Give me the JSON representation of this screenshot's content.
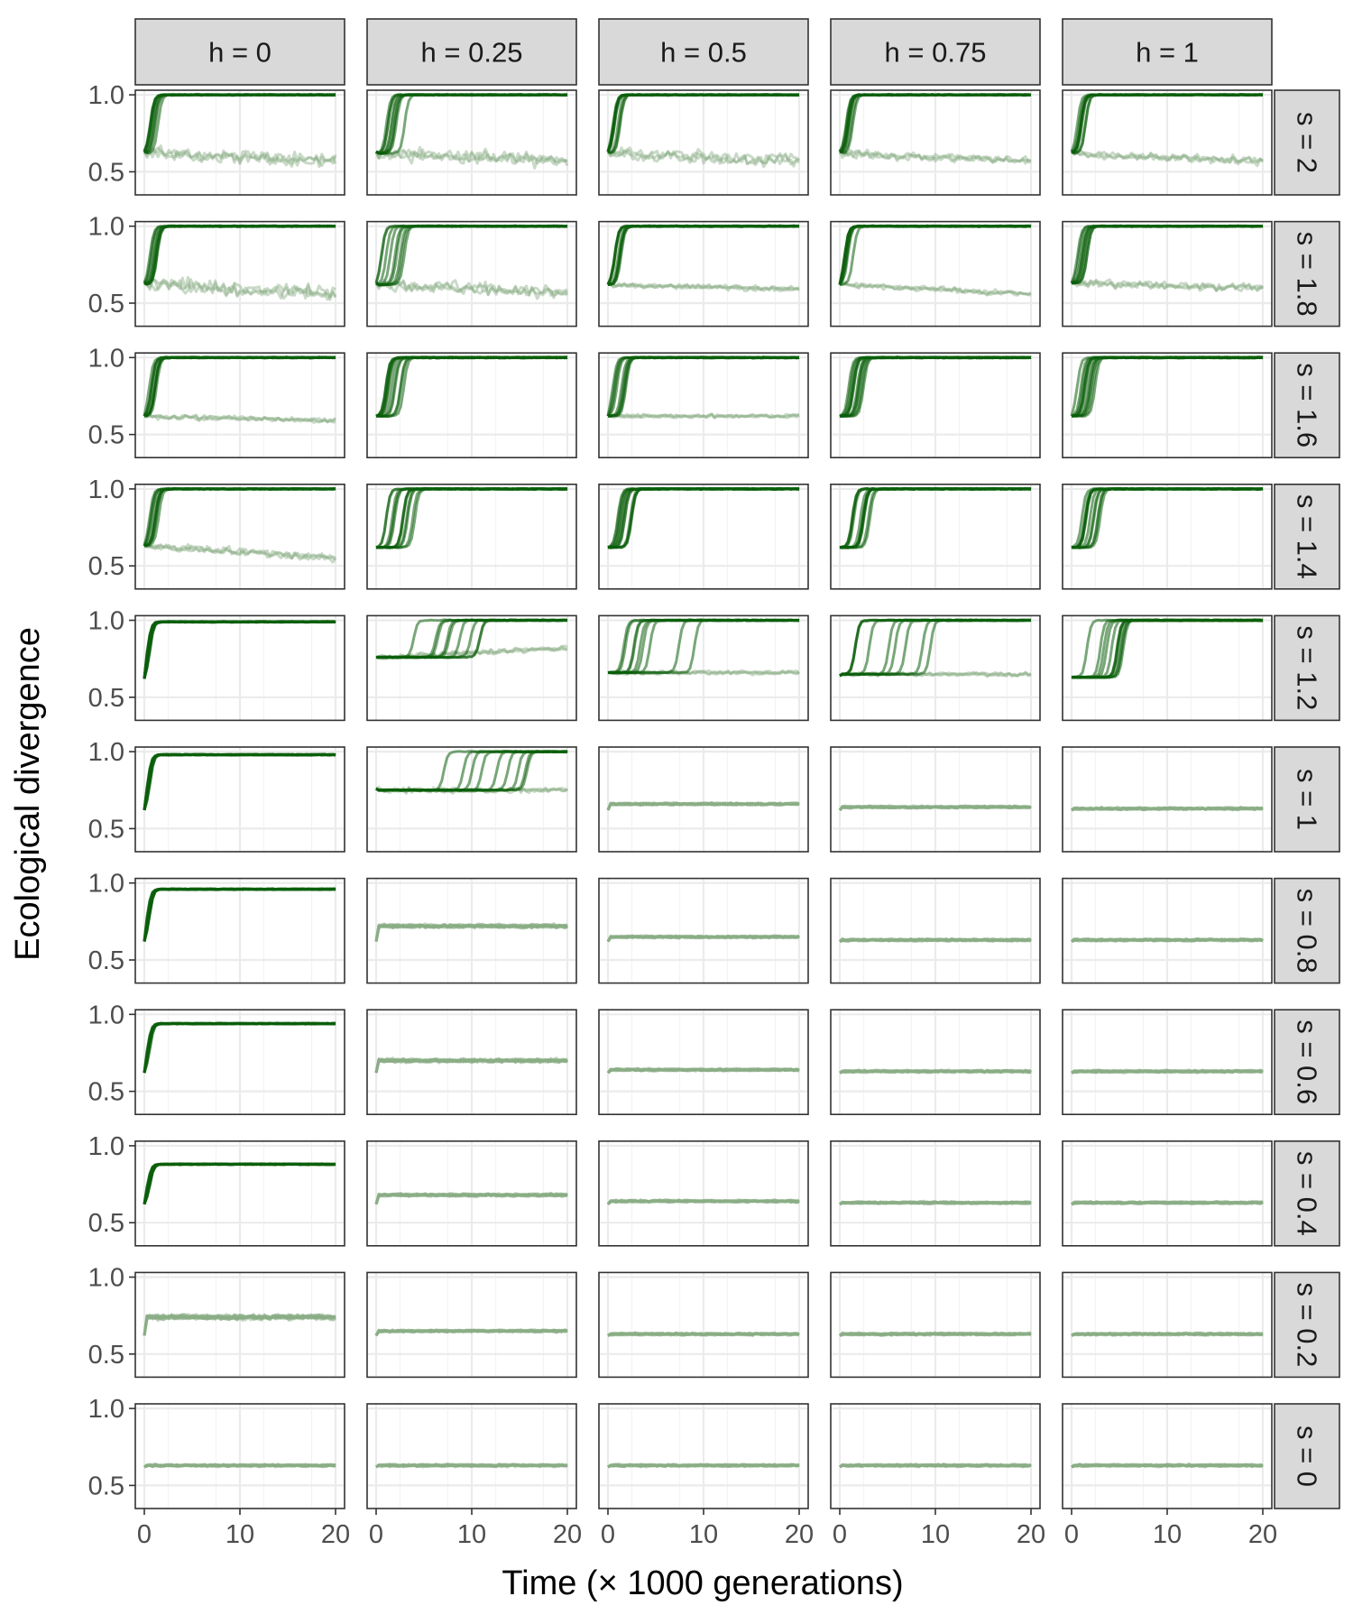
{
  "chart_data": {
    "type": "line",
    "layout": "facet-grid",
    "xlabel": "Time (× 1000 generations)",
    "ylabel": "Ecological divergence",
    "xlim": [
      0,
      20
    ],
    "ylim": [
      0.5,
      1.0
    ],
    "xticks": [
      0,
      10,
      20
    ],
    "yticks": [
      0.5,
      1.0
    ],
    "xtick_labels": [
      "0",
      "10",
      "20"
    ],
    "ytick_labels": [
      "0.5",
      "1.0"
    ],
    "grid": true,
    "col_facet_labels": [
      "h = 0",
      "h = 0.25",
      "h = 0.5",
      "h = 0.75",
      "h = 1"
    ],
    "row_facet_labels": [
      "s = 2",
      "s = 1.8",
      "s = 1.6",
      "s = 1.4",
      "s = 1.2",
      "s = 1",
      "s = 0.8",
      "s = 0.6",
      "s = 0.4",
      "s = 0.2",
      "s = 0"
    ],
    "colors": {
      "diverged": "#0b5e0b",
      "intermediate": "#3f8a3f",
      "not_diverged": "#8aae86",
      "strip_fill": "#d9d9d9",
      "grid": "#ebebeb",
      "panel_border": "#333333"
    },
    "panels": [
      [
        {
          "start": 0.63,
          "diverge": 1.0,
          "t_min": 0.5,
          "t_max": 1.5,
          "plateau": 0.62,
          "drift": -0.05,
          "noise": 0.05
        },
        {
          "start": 0.63,
          "diverge": 1.0,
          "t_min": 0.5,
          "t_max": 1.5,
          "plateau": 0.62,
          "drift": -0.06,
          "noise": 0.06
        },
        {
          "start": 0.62,
          "diverge": 1.0,
          "t_min": 0.5,
          "t_max": 1.5,
          "plateau": 0.62,
          "drift": -0.03,
          "noise": 0.02
        },
        {
          "start": 0.63,
          "diverge": 1.0,
          "t_min": 0.5,
          "t_max": 1.5,
          "plateau": 0.63,
          "drift": -0.08,
          "noise": 0.03
        },
        {
          "start": 0.62,
          "diverge": 1.0,
          "t_min": 0.3,
          "t_max": 0.6,
          "final": 0.99
        },
        {
          "start": 0.62,
          "diverge": 1.0,
          "t_min": 0.3,
          "t_max": 0.6,
          "final": 0.98
        },
        {
          "start": 0.62,
          "diverge": 1.0,
          "t_min": 0.3,
          "t_max": 0.6,
          "final": 0.96
        },
        {
          "start": 0.62,
          "diverge": 1.0,
          "t_min": 0.3,
          "t_max": 0.6,
          "final": 0.94
        },
        {
          "start": 0.62,
          "diverge": 1.0,
          "t_min": 0.3,
          "t_max": 0.6,
          "final": 0.88
        },
        {
          "start": 0.62,
          "plateau": 0.74,
          "noise": 0.02
        },
        {
          "start": 0.62,
          "plateau": 0.63,
          "noise": 0.01
        }
      ],
      [
        {
          "start": 0.63,
          "diverge": 1.0,
          "t_min": 0.5,
          "t_max": 3.0,
          "plateau": 0.62,
          "drift": -0.05,
          "noise": 0.05
        },
        {
          "start": 0.63,
          "diverge": 1.0,
          "t_min": 0.5,
          "t_max": 3.0,
          "plateau": 0.62,
          "drift": -0.05,
          "noise": 0.05
        },
        {
          "start": 0.62,
          "diverge": 1.0,
          "t_min": 1.0,
          "t_max": 3.0,
          "final": 1.0
        },
        {
          "start": 0.62,
          "diverge": 1.0,
          "t_min": 1.0,
          "t_max": 5.0,
          "final": 1.0
        },
        {
          "start": 0.76,
          "diverge": 1.0,
          "t_min": 2.0,
          "t_max": 12.0,
          "plateau": 0.76,
          "drift": 0.06,
          "noise": 0.02
        },
        {
          "start": 0.76,
          "diverge": 1.0,
          "t_min": 5.0,
          "t_max": 18.0,
          "plateau": 0.75,
          "noise": 0.02
        },
        {
          "start": 0.62,
          "plateau": 0.72,
          "noise": 0.015
        },
        {
          "start": 0.62,
          "plateau": 0.7,
          "noise": 0.015
        },
        {
          "start": 0.62,
          "plateau": 0.68,
          "noise": 0.012
        },
        {
          "start": 0.62,
          "plateau": 0.65,
          "noise": 0.01
        },
        {
          "start": 0.62,
          "plateau": 0.63,
          "noise": 0.01
        }
      ],
      [
        {
          "start": 0.63,
          "diverge": 1.0,
          "t_min": 0.5,
          "t_max": 1.5,
          "plateau": 0.62,
          "drift": -0.05,
          "noise": 0.05
        },
        {
          "start": 0.62,
          "diverge": 1.0,
          "t_min": 0.5,
          "t_max": 1.5,
          "plateau": 0.62,
          "drift": -0.03,
          "noise": 0.02
        },
        {
          "start": 0.62,
          "diverge": 1.0,
          "t_min": 0.5,
          "t_max": 2.0,
          "plateau": 0.62,
          "noise": 0.015
        },
        {
          "start": 0.62,
          "diverge": 1.0,
          "t_min": 0.5,
          "t_max": 2.5,
          "final": 1.0
        },
        {
          "start": 0.66,
          "diverge": 1.0,
          "t_min": 1.5,
          "t_max": 10.0,
          "plateau": 0.66,
          "noise": 0.015
        },
        {
          "start": 0.62,
          "plateau": 0.66,
          "noise": 0.01
        },
        {
          "start": 0.62,
          "plateau": 0.65,
          "noise": 0.01
        },
        {
          "start": 0.62,
          "plateau": 0.64,
          "noise": 0.01
        },
        {
          "start": 0.62,
          "plateau": 0.64,
          "noise": 0.01
        },
        {
          "start": 0.62,
          "plateau": 0.63,
          "noise": 0.01
        },
        {
          "start": 0.62,
          "plateau": 0.63,
          "noise": 0.01
        }
      ],
      [
        {
          "start": 0.63,
          "diverge": 1.0,
          "t_min": 0.5,
          "t_max": 1.5,
          "plateau": 0.62,
          "drift": -0.05,
          "noise": 0.03
        },
        {
          "start": 0.62,
          "diverge": 1.0,
          "t_min": 0.5,
          "t_max": 1.5,
          "plateau": 0.62,
          "drift": -0.06,
          "noise": 0.02
        },
        {
          "start": 0.62,
          "diverge": 1.0,
          "t_min": 0.5,
          "t_max": 2.5,
          "final": 1.0
        },
        {
          "start": 0.62,
          "diverge": 1.0,
          "t_min": 1.0,
          "t_max": 3.5,
          "final": 1.0
        },
        {
          "start": 0.64,
          "diverge": 1.0,
          "t_min": 1.5,
          "t_max": 11.0,
          "plateau": 0.65,
          "noise": 0.015
        },
        {
          "start": 0.62,
          "plateau": 0.64,
          "noise": 0.01
        },
        {
          "start": 0.62,
          "plateau": 0.63,
          "noise": 0.01
        },
        {
          "start": 0.62,
          "plateau": 0.63,
          "noise": 0.01
        },
        {
          "start": 0.62,
          "plateau": 0.63,
          "noise": 0.01
        },
        {
          "start": 0.62,
          "plateau": 0.63,
          "noise": 0.01
        },
        {
          "start": 0.62,
          "plateau": 0.63,
          "noise": 0.01
        }
      ],
      [
        {
          "start": 0.63,
          "diverge": 1.0,
          "t_min": 0.5,
          "t_max": 1.5,
          "plateau": 0.62,
          "drift": -0.05,
          "noise": 0.03
        },
        {
          "start": 0.63,
          "diverge": 1.0,
          "t_min": 0.5,
          "t_max": 3.0,
          "plateau": 0.63,
          "drift": -0.03,
          "noise": 0.03
        },
        {
          "start": 0.62,
          "diverge": 1.0,
          "t_min": 0.5,
          "t_max": 2.5,
          "final": 1.0
        },
        {
          "start": 0.62,
          "diverge": 1.0,
          "t_min": 1.0,
          "t_max": 3.0,
          "final": 1.0
        },
        {
          "start": 0.63,
          "diverge": 1.0,
          "t_min": 1.5,
          "t_max": 6.0,
          "final": 1.0
        },
        {
          "start": 0.62,
          "plateau": 0.63,
          "noise": 0.01
        },
        {
          "start": 0.62,
          "plateau": 0.63,
          "noise": 0.01
        },
        {
          "start": 0.62,
          "plateau": 0.63,
          "noise": 0.01
        },
        {
          "start": 0.62,
          "plateau": 0.63,
          "noise": 0.01
        },
        {
          "start": 0.62,
          "plateau": 0.63,
          "noise": 0.01
        },
        {
          "start": 0.62,
          "plateau": 0.63,
          "noise": 0.01
        }
      ]
    ]
  }
}
